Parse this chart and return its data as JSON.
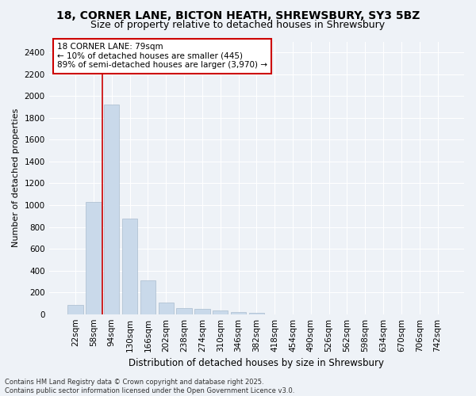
{
  "title1": "18, CORNER LANE, BICTON HEATH, SHREWSBURY, SY3 5BZ",
  "title2": "Size of property relative to detached houses in Shrewsbury",
  "xlabel": "Distribution of detached houses by size in Shrewsbury",
  "ylabel": "Number of detached properties",
  "bar_color": "#c9d9ea",
  "bar_edge_color": "#aabcce",
  "categories": [
    "22sqm",
    "58sqm",
    "94sqm",
    "130sqm",
    "166sqm",
    "202sqm",
    "238sqm",
    "274sqm",
    "310sqm",
    "346sqm",
    "382sqm",
    "418sqm",
    "454sqm",
    "490sqm",
    "526sqm",
    "562sqm",
    "598sqm",
    "634sqm",
    "670sqm",
    "706sqm",
    "742sqm"
  ],
  "values": [
    85,
    1030,
    1920,
    880,
    310,
    110,
    55,
    45,
    35,
    20,
    15,
    0,
    0,
    0,
    0,
    0,
    0,
    0,
    0,
    0,
    0
  ],
  "ylim": [
    0,
    2500
  ],
  "yticks": [
    0,
    200,
    400,
    600,
    800,
    1000,
    1200,
    1400,
    1600,
    1800,
    2000,
    2200,
    2400
  ],
  "vline_x": 1.5,
  "vline_color": "#cc0000",
  "annotation_title": "18 CORNER LANE: 79sqm",
  "annotation_line1": "← 10% of detached houses are smaller (445)",
  "annotation_line2": "89% of semi-detached houses are larger (3,970) →",
  "annotation_edge_color": "#cc0000",
  "footnote1": "Contains HM Land Registry data © Crown copyright and database right 2025.",
  "footnote2": "Contains public sector information licensed under the Open Government Licence v3.0.",
  "bg_color": "#eef2f7",
  "grid_color": "#ffffff",
  "title1_fontsize": 10,
  "title2_fontsize": 9,
  "ylabel_fontsize": 8,
  "xlabel_fontsize": 8.5,
  "tick_fontsize": 7.5,
  "annot_fontsize": 7.5,
  "footnote_fontsize": 6
}
